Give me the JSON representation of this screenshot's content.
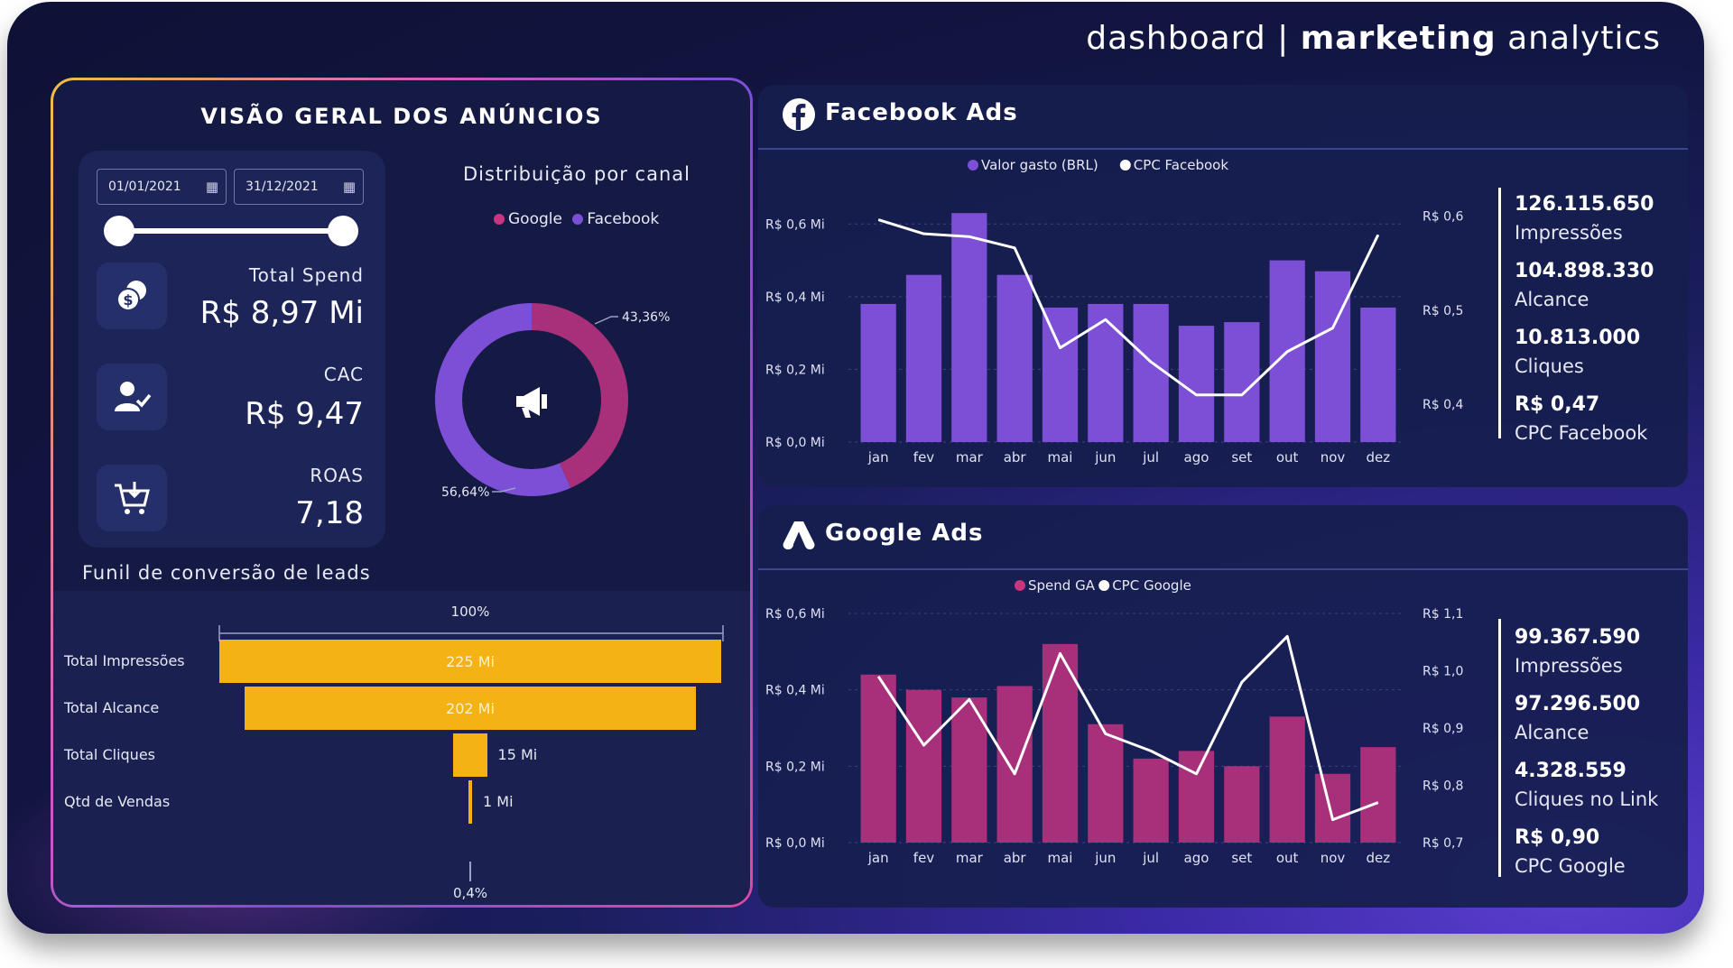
{
  "header": {
    "title_part1": "dashboard |",
    "title_part2": "marketing",
    "title_part3": "analytics"
  },
  "overview": {
    "title": "VISÃO GERAL DOS ANÚNCIOS",
    "date_start": "01/01/2021",
    "date_end": "31/12/2021",
    "kpis": [
      {
        "label": "Total Spend",
        "value": "R$ 8,97 Mi",
        "icon": "coins-icon"
      },
      {
        "label": "CAC",
        "value": "R$ 9,47",
        "icon": "user-check-icon"
      },
      {
        "label": "ROAS",
        "value": "7,18",
        "icon": "cart-icon"
      }
    ],
    "donut_title": "Distribuição por canal",
    "donut_legend": [
      "Google",
      "Facebook"
    ],
    "funnel_title": "Funil de conversão de leads"
  },
  "colors": {
    "facebook": "#7c4fd6",
    "google": "#a8307a",
    "funnel": "#f4b214",
    "line": "#ffffff"
  },
  "chart_data": [
    {
      "type": "pie",
      "title": "Distribuição por canal",
      "categories": [
        "Google",
        "Facebook"
      ],
      "values": [
        43.36,
        56.64
      ],
      "labels": [
        "43,36%",
        "56,64%"
      ],
      "legend": "top"
    },
    {
      "type": "bar",
      "title": "Funil de conversão de leads",
      "categories": [
        "Total Impressões",
        "Total Alcance",
        "Total Cliques",
        "Qtd de Vendas"
      ],
      "values": [
        225,
        202,
        15,
        1
      ],
      "labels": [
        "225 Mi",
        "202 Mi",
        "15 Mi",
        "1 Mi"
      ],
      "top_label": "100%",
      "bottom_label": "0,4%"
    },
    {
      "type": "bar",
      "title": "Facebook Ads",
      "categories": [
        "jan",
        "fev",
        "mar",
        "abr",
        "mai",
        "jun",
        "jul",
        "ago",
        "set",
        "out",
        "nov",
        "dez"
      ],
      "series": [
        {
          "name": "Valor gasto (BRL)",
          "values": [
            0.38,
            0.46,
            0.63,
            0.46,
            0.37,
            0.38,
            0.38,
            0.32,
            0.33,
            0.5,
            0.47,
            0.37
          ]
        },
        {
          "name": "CPC Facebook",
          "values": [
            0.596,
            0.581,
            0.578,
            0.566,
            0.46,
            0.49,
            0.445,
            0.41,
            0.41,
            0.456,
            0.481,
            0.58
          ]
        }
      ],
      "y_ticks": [
        "R$ 0,0 Mi",
        "R$ 0,2 Mi",
        "R$ 0,4 Mi",
        "R$ 0,6 Mi"
      ],
      "ylim": [
        0,
        0.7
      ],
      "y2_ticks": [
        "R$ 0,4",
        "R$ 0,5",
        "R$ 0,6"
      ],
      "y2lim": [
        0.36,
        0.63
      ],
      "legend": "top",
      "stats": [
        {
          "value": "126.115.650",
          "label": "Impressões"
        },
        {
          "value": "104.898.330",
          "label": "Alcance"
        },
        {
          "value": "10.813.000",
          "label": "Cliques"
        },
        {
          "value": "R$ 0,47",
          "label": "CPC Facebook"
        }
      ]
    },
    {
      "type": "bar",
      "title": "Google Ads",
      "categories": [
        "jan",
        "fev",
        "mar",
        "abr",
        "mai",
        "jun",
        "jul",
        "ago",
        "set",
        "out",
        "nov",
        "dez"
      ],
      "series": [
        {
          "name": "Spend GA",
          "values": [
            0.44,
            0.4,
            0.38,
            0.41,
            0.52,
            0.31,
            0.22,
            0.24,
            0.2,
            0.33,
            0.18,
            0.25
          ]
        },
        {
          "name": "CPC Google",
          "values": [
            0.99,
            0.87,
            0.95,
            0.82,
            1.03,
            0.89,
            0.86,
            0.82,
            0.98,
            1.06,
            0.74,
            0.77
          ]
        }
      ],
      "y_ticks": [
        "R$ 0,0 Mi",
        "R$ 0,2 Mi",
        "R$ 0,4 Mi",
        "R$ 0,6 Mi"
      ],
      "ylim": [
        0,
        0.6
      ],
      "y2_ticks": [
        "R$ 0,7",
        "R$ 0,8",
        "R$ 0,9",
        "R$ 1,0",
        "R$ 1,1"
      ],
      "y2lim": [
        0.7,
        1.1
      ],
      "legend": "top",
      "stats": [
        {
          "value": "99.367.590",
          "label": "Impressões"
        },
        {
          "value": "97.296.500",
          "label": "Alcance"
        },
        {
          "value": "4.328.559",
          "label": "Cliques no Link"
        },
        {
          "value": "R$ 0,90",
          "label": "CPC Google"
        }
      ]
    }
  ]
}
